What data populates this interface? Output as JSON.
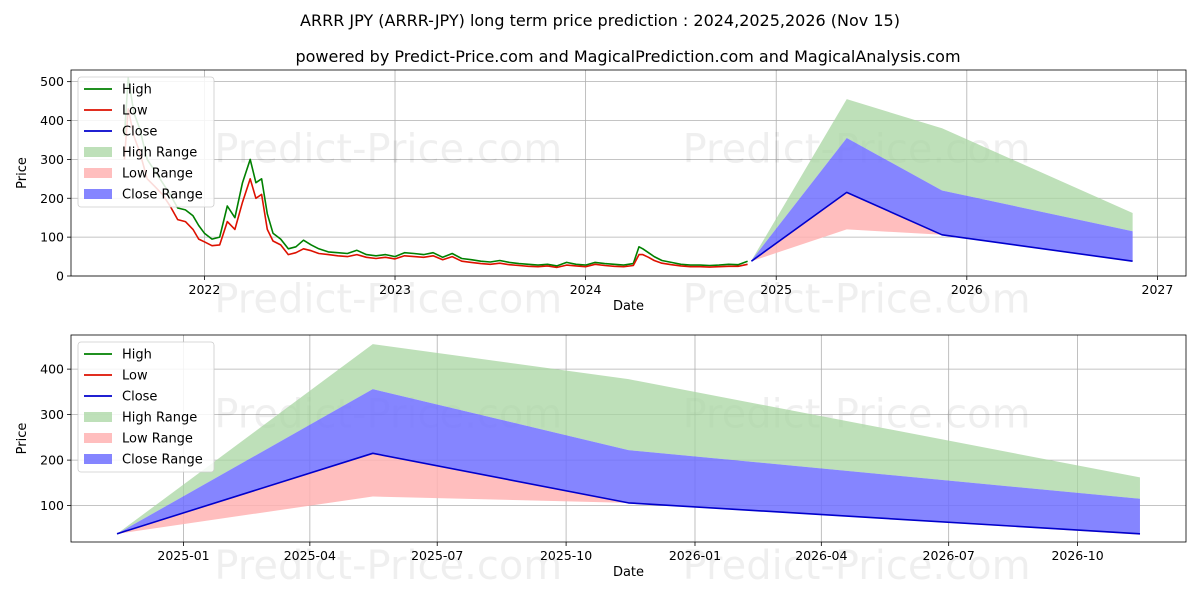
{
  "title": "ARRR JPY (ARRR-JPY) long term price prediction : 2024,2025,2026 (Nov 15)",
  "subtitle": "powered by Predict-Price.com and MagicalPrediction.com and MagicalAnalysis.com",
  "watermark": "Predict-Price.com",
  "colors": {
    "high": "#008000",
    "low": "#dd1100",
    "close": "#0000cc",
    "high_range": "#a8d5a2",
    "low_range": "#ffb3b3",
    "close_range": "#7070ff"
  },
  "chart_data": [
    {
      "type": "line",
      "xlabel": "Date",
      "ylabel": "Price",
      "xlim": [
        2021.3,
        2027.15
      ],
      "ylim": [
        0,
        530
      ],
      "xticks": [
        {
          "value": 2022,
          "label": "2022"
        },
        {
          "value": 2023,
          "label": "2023"
        },
        {
          "value": 2024,
          "label": "2024"
        },
        {
          "value": 2025,
          "label": "2025"
        },
        {
          "value": 2026,
          "label": "2026"
        },
        {
          "value": 2027,
          "label": "2027"
        }
      ],
      "yticks": [
        0,
        100,
        200,
        300,
        400,
        500
      ],
      "legend": [
        "High",
        "Low",
        "Close",
        "High Range",
        "Low Range",
        "Close Range"
      ],
      "legend_position": "top-left",
      "history": {
        "x": [
          2021.58,
          2021.6,
          2021.63,
          2021.66,
          2021.7,
          2021.74,
          2021.78,
          2021.82,
          2021.86,
          2021.9,
          2021.94,
          2021.97,
          2022.0,
          2022.04,
          2022.08,
          2022.12,
          2022.16,
          2022.2,
          2022.24,
          2022.27,
          2022.3,
          2022.33,
          2022.36,
          2022.4,
          2022.44,
          2022.48,
          2022.52,
          2022.56,
          2022.6,
          2022.65,
          2022.7,
          2022.75,
          2022.8,
          2022.85,
          2022.9,
          2022.95,
          2023.0,
          2023.05,
          2023.1,
          2023.15,
          2023.2,
          2023.25,
          2023.3,
          2023.35,
          2023.4,
          2023.45,
          2023.5,
          2023.55,
          2023.6,
          2023.65,
          2023.7,
          2023.75,
          2023.8,
          2023.85,
          2023.9,
          2023.95,
          2024.0,
          2024.05,
          2024.1,
          2024.15,
          2024.2,
          2024.25,
          2024.28,
          2024.3,
          2024.33,
          2024.36,
          2024.4,
          2024.45,
          2024.5,
          2024.55,
          2024.6,
          2024.65,
          2024.7,
          2024.75,
          2024.8,
          2024.85
        ],
        "high": [
          360,
          510,
          420,
          380,
          300,
          270,
          240,
          210,
          175,
          170,
          155,
          130,
          110,
          95,
          100,
          180,
          150,
          240,
          300,
          240,
          250,
          160,
          110,
          95,
          70,
          75,
          92,
          80,
          70,
          62,
          60,
          58,
          66,
          55,
          52,
          55,
          50,
          60,
          58,
          55,
          60,
          48,
          58,
          45,
          42,
          38,
          36,
          40,
          35,
          32,
          30,
          28,
          30,
          26,
          35,
          30,
          28,
          35,
          32,
          30,
          28,
          32,
          75,
          70,
          60,
          50,
          40,
          35,
          30,
          28,
          28,
          27,
          28,
          30,
          29,
          38
        ],
        "low": [
          300,
          430,
          360,
          320,
          250,
          230,
          210,
          180,
          145,
          140,
          120,
          95,
          88,
          78,
          80,
          140,
          120,
          190,
          250,
          200,
          210,
          120,
          90,
          80,
          55,
          60,
          70,
          65,
          58,
          55,
          52,
          50,
          55,
          48,
          45,
          48,
          44,
          52,
          50,
          48,
          52,
          42,
          50,
          38,
          35,
          32,
          30,
          33,
          29,
          27,
          25,
          24,
          26,
          22,
          28,
          26,
          24,
          30,
          27,
          25,
          24,
          27,
          55,
          55,
          48,
          40,
          33,
          29,
          26,
          24,
          24,
          23,
          24,
          25,
          25,
          30
        ],
        "close": [
          330,
          470,
          390,
          350,
          275,
          250,
          225,
          195,
          160,
          155,
          138,
          112,
          98,
          86,
          90,
          160,
          135,
          215,
          275,
          220,
          230,
          140,
          100,
          88,
          62,
          68,
          80,
          72,
          64,
          58,
          56,
          54,
          60,
          51,
          48,
          51,
          47,
          56,
          54,
          51,
          56,
          45,
          54,
          41,
          38,
          35,
          33,
          36,
          32,
          29,
          27,
          26,
          28,
          24,
          31,
          28,
          26,
          32,
          29,
          27,
          26,
          29,
          65,
          62,
          54,
          45,
          36,
          32,
          28,
          26,
          26,
          25,
          26,
          27,
          27,
          34
        ]
      },
      "forecast": {
        "x": [
          2024.87,
          2025.37,
          2025.87,
          2026.87
        ],
        "high_range": {
          "upper": [
            40,
            455,
            380,
            162
          ],
          "lower": [
            40,
            355,
            220,
            115
          ]
        },
        "low_range": {
          "upper": [
            38,
            215,
            108,
            40
          ],
          "lower": [
            38,
            120,
            106,
            38
          ]
        },
        "close_range": {
          "upper": [
            40,
            355,
            220,
            115
          ],
          "lower": [
            38,
            215,
            106,
            38
          ]
        },
        "close": [
          38,
          215,
          106,
          38
        ]
      }
    },
    {
      "type": "line",
      "xlabel": "Date",
      "ylabel": "Price",
      "xlim": [
        2024.78,
        2026.96
      ],
      "ylim": [
        20,
        475
      ],
      "xticks": [
        {
          "value": 2025.0,
          "label": "2025-01"
        },
        {
          "value": 2025.247,
          "label": "2025-04"
        },
        {
          "value": 2025.496,
          "label": "2025-07"
        },
        {
          "value": 2025.748,
          "label": "2025-10"
        },
        {
          "value": 2026.0,
          "label": "2026-01"
        },
        {
          "value": 2026.247,
          "label": "2026-04"
        },
        {
          "value": 2026.496,
          "label": "2026-07"
        },
        {
          "value": 2026.748,
          "label": "2026-10"
        }
      ],
      "yticks": [
        100,
        200,
        300,
        400
      ],
      "legend": [
        "High",
        "Low",
        "Close",
        "High Range",
        "Low Range",
        "Close Range"
      ],
      "legend_position": "top-left",
      "forecast": {
        "x": [
          2024.87,
          2025.37,
          2025.87,
          2026.87
        ],
        "high_range": {
          "upper": [
            38,
            455,
            378,
            162
          ],
          "lower": [
            38,
            356,
            222,
            115
          ]
        },
        "low_range": {
          "upper": [
            38,
            215,
            108,
            38
          ],
          "lower": [
            38,
            120,
            106,
            36
          ]
        },
        "close_range": {
          "upper": [
            38,
            356,
            222,
            115
          ],
          "lower": [
            38,
            215,
            106,
            38
          ]
        },
        "close": [
          38,
          215,
          106,
          38
        ]
      }
    }
  ]
}
